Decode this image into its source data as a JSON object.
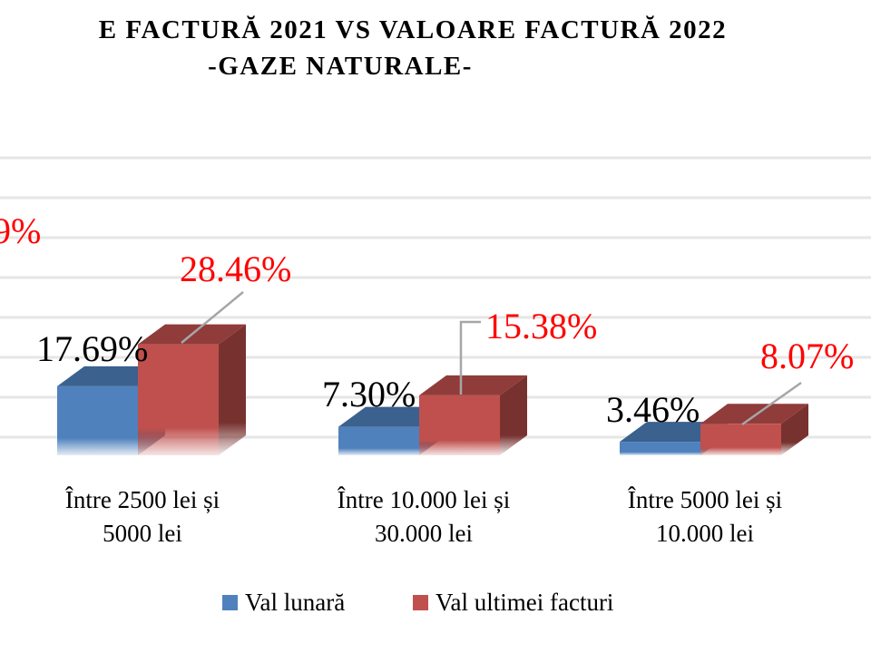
{
  "chart_data": {
    "type": "bar",
    "title_line1": "E FACTURĂ 2021 VS VALOARE FACTURĂ 2022",
    "title_line2": "-GAZE NATURALE-",
    "partial_label": "9%",
    "categories": [
      [
        "Între 2500 lei și",
        "5000 lei"
      ],
      [
        "Între 10.000 lei și",
        "30.000 lei"
      ],
      [
        "Între 5000 lei și",
        "10.000 lei"
      ]
    ],
    "series": [
      {
        "name": "Val lunară",
        "color": "#4f81bd",
        "values": [
          17.69,
          7.3,
          3.46
        ],
        "labels": [
          "17.69%",
          "7.30%",
          "3.46%"
        ],
        "label_color": "#000000"
      },
      {
        "name": "Val ultimei facturi",
        "color": "#c0504d",
        "values": [
          28.46,
          15.38,
          8.07
        ],
        "labels": [
          "28.46%",
          "15.38%",
          "8.07%"
        ],
        "label_color": "#ff0000"
      }
    ],
    "gridlines": true,
    "legend_position": "bottom"
  }
}
